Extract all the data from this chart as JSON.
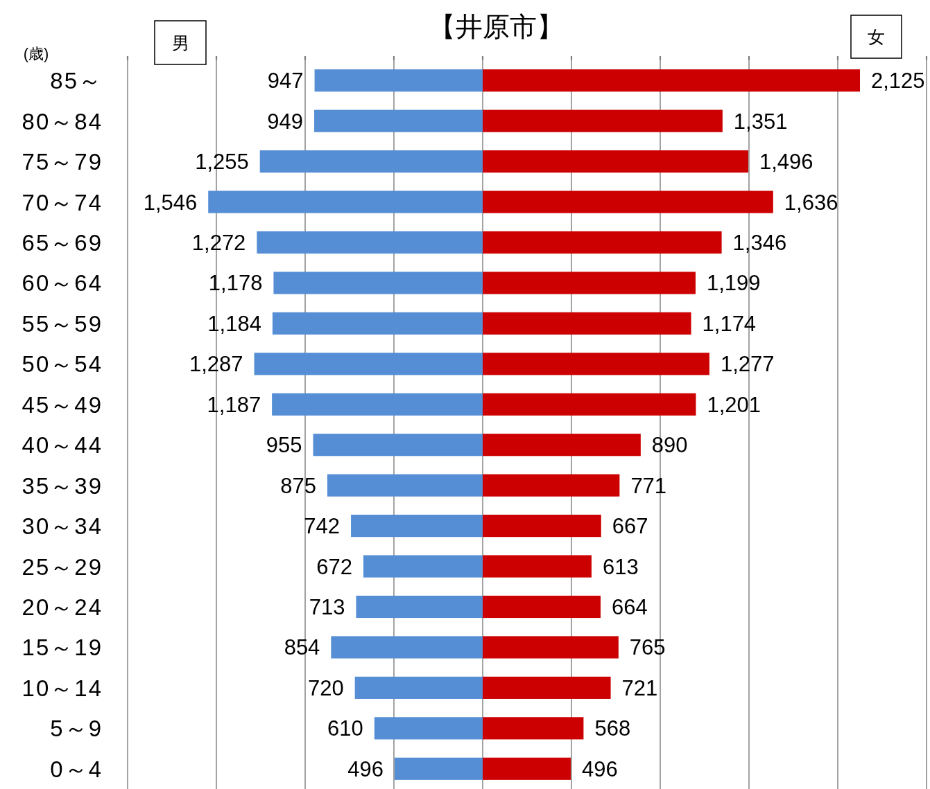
{
  "chart_data": [
    {
      "type": "bar",
      "orientation": "horizontal",
      "title": "【井原市】",
      "ylabel": "(歳)",
      "categories": [
        "85～",
        "80～84",
        "75～79",
        "70～74",
        "65～69",
        "60～64",
        "55～59",
        "50～54",
        "45～49",
        "40～44",
        "35～39",
        "30～34",
        "25～29",
        "20～24",
        "15～19",
        "10～14",
        "5～9",
        "0～4"
      ],
      "series": [
        {
          "name": "男",
          "color": "#558ed5",
          "values": [
            947,
            949,
            1255,
            1546,
            1272,
            1178,
            1184,
            1287,
            1187,
            955,
            875,
            742,
            672,
            713,
            854,
            720,
            610,
            496
          ],
          "value_labels": [
            "947",
            "949",
            "1,255",
            "1,546",
            "1,272",
            "1,178",
            "1,184",
            "1,287",
            "1,187",
            "955",
            "875",
            "742",
            "672",
            "713",
            "854",
            "720",
            "610",
            "496"
          ]
        }
      ],
      "xlim": [
        2000,
        0
      ],
      "xticks": [
        {
          "value": 2000,
          "label": null
        },
        {
          "value": 1500,
          "label": null
        },
        {
          "value": 1000,
          "label": null
        },
        {
          "value": 500,
          "label": null
        },
        {
          "value": 0,
          "label": null
        }
      ],
      "grid": "x",
      "tick_labels": "y"
    },
    {
      "type": "bar",
      "orientation": "horizontal",
      "categories": [
        "85～",
        "80～84",
        "75～79",
        "70～74",
        "65～69",
        "60～64",
        "55～59",
        "50～54",
        "45～49",
        "40～44",
        "35～39",
        "30～34",
        "25～29",
        "20～24",
        "15～19",
        "10～14",
        "5～9",
        "0～4"
      ],
      "series": [
        {
          "name": "女",
          "color": "#cc0000",
          "values": [
            2125,
            1351,
            1496,
            1636,
            1346,
            1199,
            1174,
            1277,
            1201,
            890,
            771,
            667,
            613,
            664,
            765,
            721,
            568,
            496
          ],
          "value_labels": [
            "2,125",
            "1,351",
            "1,496",
            "1,636",
            "1,346",
            "1,199",
            "1,174",
            "1,277",
            "1,201",
            "890",
            "771",
            "667",
            "613",
            "664",
            "765",
            "721",
            "568",
            "496"
          ]
        }
      ],
      "xlim": [
        0,
        2500
      ],
      "xticks": [
        {
          "value": 0,
          "label": null
        },
        {
          "value": 500,
          "label": null
        },
        {
          "value": 1000,
          "label": null
        },
        {
          "value": 1500,
          "label": null
        },
        {
          "value": 2000,
          "label": null
        },
        {
          "value": 2500,
          "label": null
        }
      ],
      "grid": "x",
      "tick_labels": false
    }
  ]
}
